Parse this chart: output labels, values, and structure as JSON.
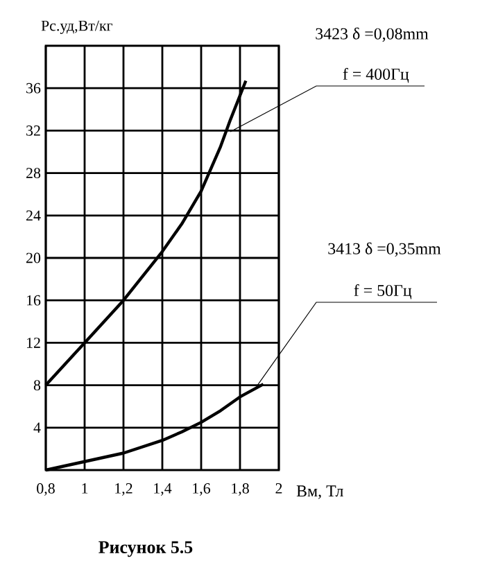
{
  "chart_data": {
    "type": "line",
    "title": "**Рисунок 5.5**",
    "xlabel": "Вм, Тл",
    "ylabel": "Рс.уд,Вт/кг",
    "xlim": [
      0.8,
      2
    ],
    "ylim": [
      0,
      40
    ],
    "xticks": [
      {
        "value": 0.8,
        "label": "0,8"
      },
      1,
      {
        "value": 1.2,
        "label": "1,2"
      },
      {
        "value": 1.4,
        "label": "1,4"
      },
      {
        "value": 1.6,
        "label": "1,6"
      },
      {
        "value": 1.8,
        "label": "1,8"
      },
      2
    ],
    "yticks": [
      4,
      8,
      12,
      16,
      20,
      24,
      28,
      32,
      36
    ],
    "grid": true,
    "line_style": "solid",
    "marker": "none",
    "series": [
      {
        "color": "#000000",
        "x": [
          0.8,
          1.0,
          1.2,
          1.4,
          1.5,
          1.6,
          1.7,
          1.75,
          1.83
        ],
        "values": [
          8,
          12,
          16,
          20.6,
          23.2,
          26.3,
          30.5,
          33,
          36.7
        ]
      },
      {
        "color": "#000000",
        "x": [
          0.8,
          1.0,
          1.2,
          1.4,
          1.5,
          1.6,
          1.7,
          1.8,
          1.92
        ],
        "values": [
          0,
          0.8,
          1.6,
          2.8,
          3.6,
          4.5,
          5.6,
          6.9,
          8.1
        ]
      }
    ],
    "annotations": [
      "3423 δ =0,08mm",
      {
        "text": "f = 400Гц",
        "x": 1.75,
        "y": 31.9
      },
      "3413 δ =0,35mm",
      {
        "text": "f = 50Гц",
        "x": 1.89,
        "y": 8
      }
    ]
  }
}
